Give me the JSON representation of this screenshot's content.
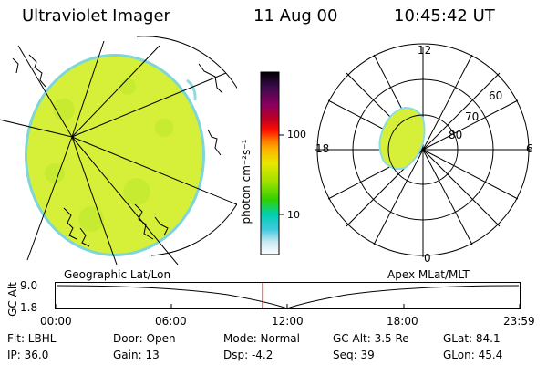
{
  "header": {
    "instrument": "Ultraviolet Imager",
    "date": "11 Aug 00",
    "time": "10:45:42 UT"
  },
  "colorbar": {
    "label": "photon cm⁻²s⁻¹",
    "ticks": [
      "100",
      "10"
    ],
    "colors": [
      "#000000",
      "#3a0a4a",
      "#8a0060",
      "#c00020",
      "#ff1000",
      "#ff7000",
      "#ffb000",
      "#e8e800",
      "#a0e000",
      "#30d000",
      "#00d0b0",
      "#40c8e0",
      "#c8e8f0",
      "#ffffff"
    ]
  },
  "polar_plot": {
    "mlt_labels": {
      "top": "12",
      "right": "6",
      "bottom": "0",
      "left": "18"
    },
    "lat_labels": [
      "60",
      "70",
      "80"
    ]
  },
  "altitude_plot": {
    "left_title": "Geographic Lat/Lon",
    "right_title": "Apex MLat/MLT",
    "axis_label": "GC Alt",
    "y_ticks": [
      "9.0",
      "1.8"
    ],
    "x_ticks": [
      "00:00",
      "06:00",
      "12:00",
      "18:00",
      "23:59"
    ],
    "marker_color": "#cc0000"
  },
  "info": {
    "row1": {
      "filter": "Flt: LBHL",
      "door": "Door: Open",
      "mode": "Mode: Normal",
      "gc_alt": "GC Alt: 3.5 Re",
      "glat": "GLat:  84.1"
    },
    "row2": {
      "ip": "IP: 36.0",
      "gain": "Gain: 13",
      "dsp": "Dsp:   -4.2",
      "seq": "Seq: 39",
      "glon": "GLon:  45.4"
    }
  },
  "colors": {
    "image_fill": "#d6f03a",
    "image_edge": "#6fd4d8",
    "marker": "#cc0000"
  }
}
